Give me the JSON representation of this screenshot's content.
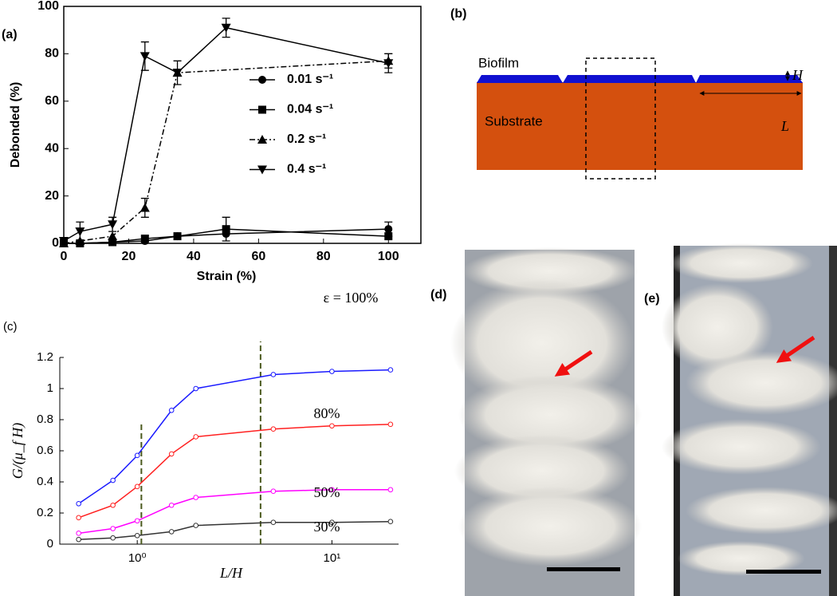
{
  "chart_data": [
    {
      "type": "line",
      "panel_label": "(a)",
      "x_label": "Strain (%)",
      "y_label": "Debonded (%)",
      "xlim": [
        0,
        110
      ],
      "ylim": [
        0,
        100
      ],
      "xticks": [
        0,
        20,
        40,
        60,
        80,
        100
      ],
      "yticks": [
        0,
        20,
        40,
        60,
        80,
        100
      ],
      "legend": "center-right",
      "series": [
        {
          "name": "0.01 s⁻¹",
          "color": "#000000",
          "marker": "circle",
          "dash": "solid",
          "x": [
            0,
            5,
            15,
            25,
            35,
            50,
            100
          ],
          "values": [
            0,
            0,
            0.5,
            1,
            3,
            4,
            6
          ],
          "errors": [
            null,
            null,
            null,
            null,
            null,
            null,
            3
          ]
        },
        {
          "name": "0.04 s⁻¹",
          "color": "#000000",
          "marker": "square",
          "dash": "solid",
          "x": [
            0,
            5,
            15,
            25,
            35,
            50,
            100
          ],
          "values": [
            0,
            0,
            0.5,
            2,
            3,
            6,
            3
          ],
          "errors": [
            null,
            null,
            null,
            null,
            null,
            5,
            null
          ]
        },
        {
          "name": "0.2 s⁻¹",
          "color": "#000000",
          "marker": "triangle-up",
          "dash": "dashdot",
          "x": [
            0,
            5,
            15,
            25,
            35,
            100
          ],
          "values": [
            0,
            1,
            3,
            15,
            72,
            77
          ],
          "errors": [
            null,
            null,
            null,
            4,
            null,
            3
          ]
        },
        {
          "name": "0.4 s⁻¹",
          "color": "#000000",
          "marker": "triangle-down",
          "dash": "solid",
          "x": [
            0,
            5,
            15,
            25,
            35,
            50,
            100
          ],
          "values": [
            1,
            5,
            8,
            79,
            72,
            91,
            76
          ],
          "errors": [
            null,
            4,
            3,
            6,
            5,
            4,
            4
          ]
        }
      ]
    },
    {
      "type": "line",
      "panel_label": "(c)",
      "x_label": "L/H",
      "y_label": "G/(μ_f H)",
      "log_x": true,
      "xlim": [
        0.4,
        22
      ],
      "ylim": [
        0,
        1.2
      ],
      "xticks": [
        {
          "value": 1,
          "label": "10⁰"
        },
        {
          "value": 10,
          "label": "10¹"
        }
      ],
      "yticks": [
        0,
        0.2,
        0.4,
        0.6,
        0.8,
        1,
        1.2
      ],
      "x": [
        0.5,
        0.75,
        1,
        1.5,
        2,
        5,
        10,
        20
      ],
      "vlines": [
        1.05,
        4.3
      ],
      "vline_color": "#4b5a1e",
      "series": [
        {
          "name": "ε = 100%",
          "color": "#1a1aff",
          "values": [
            0.26,
            0.41,
            0.57,
            0.86,
            1.0,
            1.09,
            1.11,
            1.12
          ]
        },
        {
          "name": "80%",
          "color": "#ff2020",
          "values": [
            0.17,
            0.25,
            0.37,
            0.58,
            0.69,
            0.74,
            0.76,
            0.77
          ]
        },
        {
          "name": "50%",
          "color": "#ff00ff",
          "values": [
            0.07,
            0.1,
            0.15,
            0.25,
            0.3,
            0.34,
            0.35,
            0.35
          ]
        },
        {
          "name": "30%",
          "color": "#333333",
          "values": [
            0.03,
            0.04,
            0.055,
            0.08,
            0.12,
            0.14,
            0.14,
            0.145
          ]
        }
      ]
    }
  ],
  "panels": {
    "b": {
      "label": "(b)",
      "biofilm": "Biofilm",
      "substrate": "Substrate",
      "H": "H",
      "L": "L"
    },
    "d": {
      "label": "(d)"
    },
    "e": {
      "label": "(e)"
    }
  }
}
